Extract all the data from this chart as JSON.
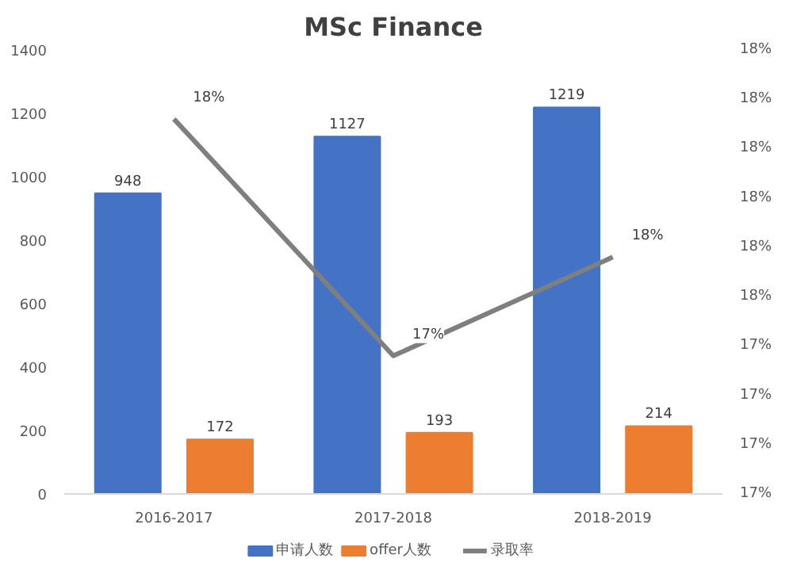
{
  "chart_data": {
    "type": "bar",
    "title": "MSc Finance",
    "categories": [
      "2016-2017",
      "2017-2018",
      "2018-2019"
    ],
    "ylim": [
      0,
      1400
    ],
    "yticks": [
      0,
      200,
      400,
      600,
      800,
      1000,
      1200,
      1400
    ],
    "y2lim": [
      17.1,
      18.0
    ],
    "y2ticks": [
      {
        "value": 17.1,
        "label": "17%"
      },
      {
        "value": 17.2,
        "label": "17%"
      },
      {
        "value": 17.3,
        "label": "17%"
      },
      {
        "value": 17.4,
        "label": "17%"
      },
      {
        "value": 17.5,
        "label": "18%"
      },
      {
        "value": 17.6,
        "label": "18%"
      },
      {
        "value": 17.7,
        "label": "18%"
      },
      {
        "value": 17.8,
        "label": "18%"
      },
      {
        "value": 17.9,
        "label": "18%"
      },
      {
        "value": 18.0,
        "label": "18%"
      }
    ],
    "series": [
      {
        "name": "申请人数",
        "color": "#4472c4",
        "values": [
          948,
          1127,
          1219
        ],
        "value_labels": [
          "948",
          "1127",
          "1219"
        ]
      },
      {
        "name": "offer人数",
        "color": "#ed7d31",
        "values": [
          172,
          193,
          214
        ],
        "value_labels": [
          "172",
          "193",
          "214"
        ]
      },
      {
        "name": "录取率",
        "type": "line",
        "axis": "y2",
        "color": "#7f7f7f",
        "values": [
          17.86,
          17.38,
          17.58
        ],
        "value_labels": [
          "18%",
          "17%",
          "18%"
        ]
      }
    ],
    "grid": false,
    "legend": "bottom"
  }
}
